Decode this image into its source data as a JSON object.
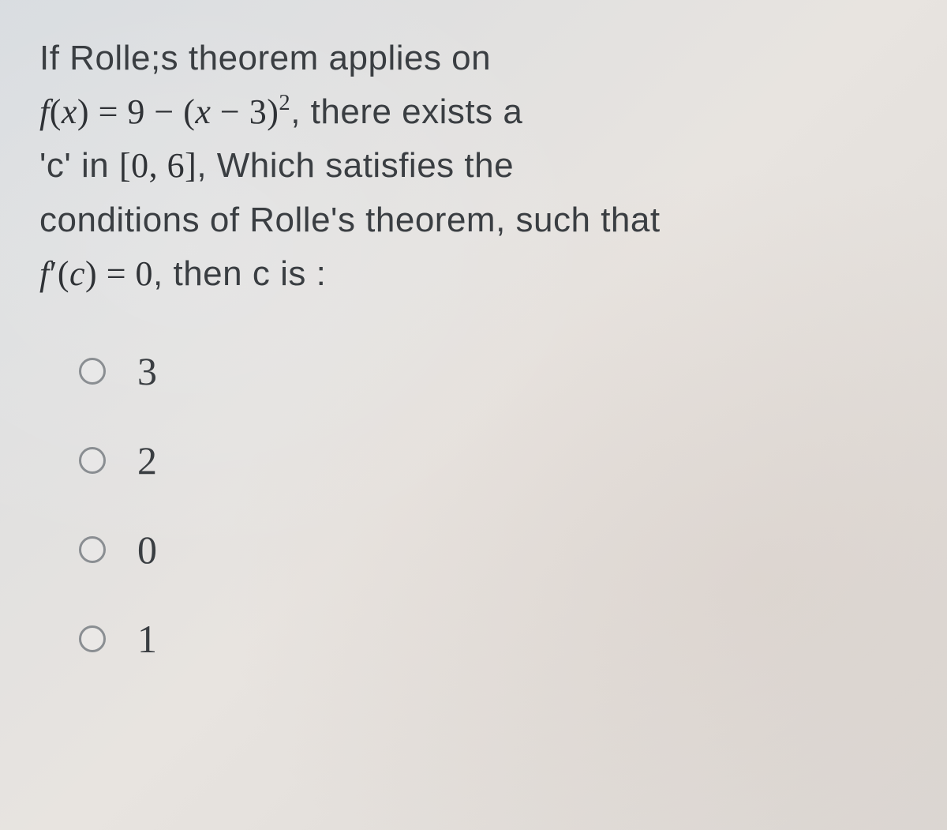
{
  "question": {
    "line1_a": "If Rolle;s theorem applies on",
    "math_fx_label": "f",
    "math_open_paren": "(",
    "math_x": "x",
    "math_close_paren": ")",
    "math_eq": " = ",
    "math_nine": "9",
    "math_minus": " − ",
    "math_paren_open2": "(",
    "math_x2": "x",
    "math_minus2": " − ",
    "math_three": "3",
    "math_paren_close2": ")",
    "math_sq": "2",
    "line2_b": ", there exists a",
    "line3_a": "'c' in ",
    "math_interval_open": "[",
    "math_zero": "0",
    "math_comma": ", ",
    "math_six": "6",
    "math_interval_close": "]",
    "line3_b": ", Which satisfies the",
    "line4": "conditions of Rolle's theorem,  such that",
    "math_fprime_f": "f",
    "math_fprime_prime": "′",
    "math_fprime_open": "(",
    "math_fprime_c": "c",
    "math_fprime_close": ")",
    "math_fprime_eq": " = ",
    "math_fprime_zero": "0",
    "line5_b": ", then c is :"
  },
  "options": [
    {
      "label": "3"
    },
    {
      "label": "2"
    },
    {
      "label": "0"
    },
    {
      "label": "1"
    }
  ],
  "colors": {
    "text": "#3a3e42",
    "radio_border": "#8a8e92",
    "bg_start": "#d8dce0",
    "bg_end": "#dcd8d4"
  }
}
